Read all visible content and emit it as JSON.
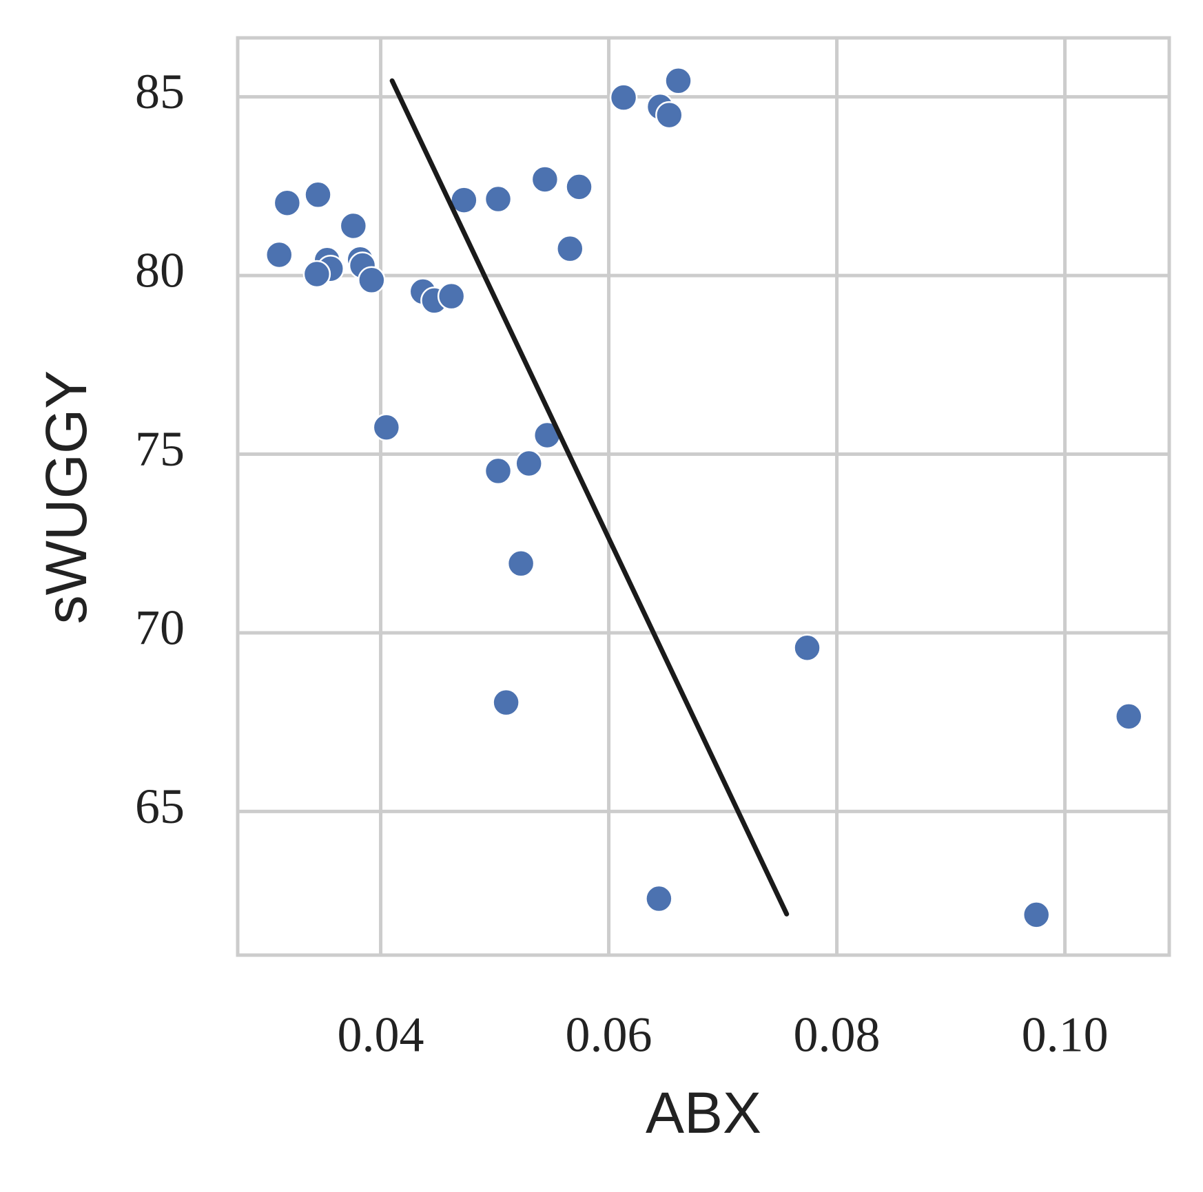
{
  "chart_data": {
    "type": "scatter",
    "x_label": "ABX",
    "y_label": "sWUGGY",
    "x": [
      0.0661,
      0.0613,
      0.0645,
      0.0653,
      0.0544,
      0.0574,
      0.0345,
      0.0318,
      0.0473,
      0.0503,
      0.0376,
      0.0311,
      0.0566,
      0.0353,
      0.0356,
      0.0344,
      0.0382,
      0.0384,
      0.0392,
      0.0437,
      0.0447,
      0.0462,
      0.0405,
      0.0546,
      0.0503,
      0.053,
      0.0523,
      0.051,
      0.0774,
      0.1056,
      0.0644,
      0.0975
    ],
    "y": [
      85.45,
      84.98,
      84.72,
      84.49,
      82.69,
      82.48,
      82.26,
      82.03,
      82.11,
      82.14,
      81.39,
      80.58,
      80.75,
      80.43,
      80.19,
      80.04,
      80.45,
      80.28,
      79.87,
      79.55,
      79.3,
      79.42,
      75.75,
      75.53,
      74.53,
      74.74,
      71.94,
      68.05,
      69.58,
      67.66,
      62.56,
      62.11
    ],
    "color": "#4c72b0",
    "fit_line": {
      "x": [
        0.041,
        0.0756
      ],
      "y": [
        85.45,
        62.13
      ],
      "color": "#1a1a1a"
    },
    "xlim": [
      0.02746,
      0.10915
    ],
    "ylim": [
      60.98,
      86.65
    ],
    "xticks": [
      {
        "value": 0.04,
        "label": "0.04"
      },
      {
        "value": 0.06,
        "label": "0.06"
      },
      {
        "value": 0.08,
        "label": "0.08"
      },
      {
        "value": 0.1,
        "label": "0.10"
      }
    ],
    "yticks": [
      65,
      70,
      75,
      80,
      85
    ],
    "grid": true
  }
}
